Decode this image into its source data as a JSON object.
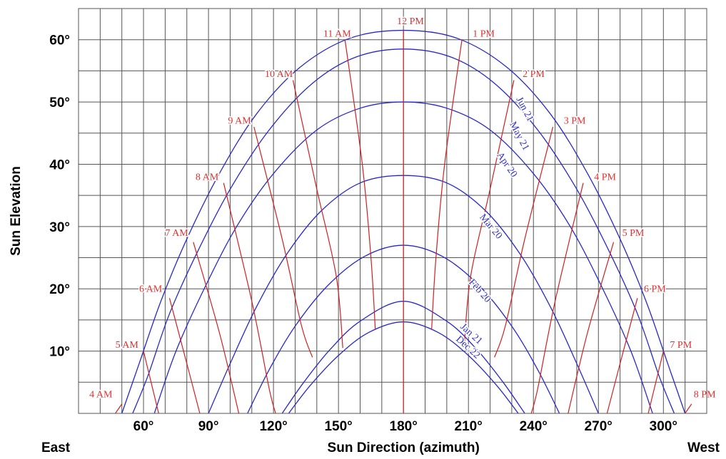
{
  "chart_data": {
    "type": "line",
    "xlabel": "Sun Direction (azimuth)",
    "ylabel": "Sun Elevation",
    "x_left_label": "East",
    "x_right_label": "West",
    "xlim": [
      30,
      320
    ],
    "ylim": [
      0,
      65
    ],
    "x_ticks": [
      {
        "value": 60,
        "label": "60°"
      },
      {
        "value": 90,
        "label": "90°"
      },
      {
        "value": 120,
        "label": "120°"
      },
      {
        "value": 150,
        "label": "150°"
      },
      {
        "value": 180,
        "label": "180°"
      },
      {
        "value": 210,
        "label": "210°"
      },
      {
        "value": 240,
        "label": "240°"
      },
      {
        "value": 270,
        "label": "270°"
      },
      {
        "value": 300,
        "label": "300°"
      }
    ],
    "y_ticks": [
      {
        "value": 10,
        "label": "10°"
      },
      {
        "value": 20,
        "label": "20°"
      },
      {
        "value": 30,
        "label": "30°"
      },
      {
        "value": 40,
        "label": "40°"
      },
      {
        "value": 50,
        "label": "50°"
      },
      {
        "value": 60,
        "label": "60°"
      }
    ],
    "grid": true,
    "series": [
      {
        "name": "Jun 21",
        "points": [
          [
            50,
            0
          ],
          [
            58,
            8
          ],
          [
            68,
            18
          ],
          [
            80,
            28
          ],
          [
            95,
            38.5
          ],
          [
            112,
            48
          ],
          [
            132,
            55.5
          ],
          [
            155,
            60.2
          ],
          [
            180,
            61.5
          ],
          [
            205,
            60.2
          ],
          [
            228,
            55.5
          ],
          [
            248,
            48
          ],
          [
            265,
            38.5
          ],
          [
            280,
            28
          ],
          [
            292,
            18
          ],
          [
            302,
            8
          ],
          [
            310,
            0
          ]
        ]
      },
      {
        "name": "May 21",
        "points": [
          [
            55,
            0
          ],
          [
            62,
            6
          ],
          [
            72,
            16
          ],
          [
            85,
            26
          ],
          [
            100,
            36
          ],
          [
            118,
            45.5
          ],
          [
            138,
            53
          ],
          [
            158,
            57.2
          ],
          [
            180,
            58.5
          ],
          [
            202,
            57.2
          ],
          [
            222,
            53
          ],
          [
            242,
            45.5
          ],
          [
            260,
            36
          ],
          [
            275,
            26
          ],
          [
            288,
            16
          ],
          [
            298,
            6
          ],
          [
            305,
            0
          ]
        ]
      },
      {
        "name": "Apr 20",
        "points": [
          [
            65,
            0
          ],
          [
            75,
            10
          ],
          [
            88,
            20
          ],
          [
            103,
            30
          ],
          [
            120,
            38.5
          ],
          [
            140,
            45.5
          ],
          [
            160,
            49
          ],
          [
            180,
            50
          ],
          [
            200,
            49
          ],
          [
            220,
            45.5
          ],
          [
            240,
            38.5
          ],
          [
            257,
            30
          ],
          [
            272,
            20
          ],
          [
            285,
            10
          ],
          [
            295,
            0
          ]
        ]
      },
      {
        "name": "Mar 20",
        "points": [
          [
            90,
            0
          ],
          [
            100,
            8
          ],
          [
            112,
            17
          ],
          [
            126,
            25.5
          ],
          [
            142,
            32.5
          ],
          [
            160,
            37
          ],
          [
            180,
            38.2
          ],
          [
            200,
            37
          ],
          [
            218,
            32.5
          ],
          [
            234,
            25.5
          ],
          [
            248,
            17
          ],
          [
            260,
            8
          ],
          [
            270,
            0
          ]
        ]
      },
      {
        "name": "Feb 20",
        "points": [
          [
            108,
            0
          ],
          [
            118,
            7
          ],
          [
            130,
            14
          ],
          [
            145,
            20.5
          ],
          [
            162,
            25.2
          ],
          [
            180,
            27
          ],
          [
            198,
            25.2
          ],
          [
            215,
            20.5
          ],
          [
            230,
            14
          ],
          [
            242,
            7
          ],
          [
            252,
            0
          ]
        ]
      },
      {
        "name": "Jan 21",
        "points": [
          [
            124,
            0
          ],
          [
            134,
            5
          ],
          [
            146,
            10.2
          ],
          [
            160,
            14.8
          ],
          [
            180,
            18
          ],
          [
            200,
            14.8
          ],
          [
            214,
            10.2
          ],
          [
            226,
            5
          ],
          [
            236,
            0
          ]
        ]
      },
      {
        "name": "Dec 22",
        "points": [
          [
            127,
            0
          ],
          [
            137,
            4.5
          ],
          [
            150,
            9.3
          ],
          [
            164,
            13
          ],
          [
            180,
            14.7
          ],
          [
            196,
            13
          ],
          [
            210,
            9.3
          ],
          [
            223,
            4.5
          ],
          [
            233,
            0
          ]
        ]
      }
    ],
    "hour_lines": [
      {
        "name": "4 AM",
        "points": [
          [
            47,
            0
          ],
          [
            50,
            1.5
          ]
        ]
      },
      {
        "name": "5 AM",
        "points": [
          [
            60,
            10
          ],
          [
            67,
            0
          ]
        ]
      },
      {
        "name": "6 AM",
        "points": [
          [
            72,
            18.5
          ],
          [
            80,
            8
          ],
          [
            86,
            0
          ]
        ]
      },
      {
        "name": "7 AM",
        "points": [
          [
            83,
            27.5
          ],
          [
            95,
            13
          ],
          [
            104,
            0
          ]
        ]
      },
      {
        "name": "8 AM",
        "points": [
          [
            97,
            37
          ],
          [
            110,
            18
          ],
          [
            118,
            4
          ],
          [
            121,
            0
          ]
        ]
      },
      {
        "name": "9 AM",
        "points": [
          [
            111,
            46
          ],
          [
            124,
            28
          ],
          [
            133,
            14
          ],
          [
            138,
            9
          ]
        ]
      },
      {
        "name": "10 AM",
        "points": [
          [
            129,
            53.5
          ],
          [
            140,
            36
          ],
          [
            149,
            22
          ],
          [
            152,
            10.5
          ]
        ]
      },
      {
        "name": "11 AM",
        "points": [
          [
            153,
            60
          ],
          [
            161,
            40
          ],
          [
            165,
            25
          ],
          [
            167,
            13.5
          ]
        ]
      },
      {
        "name": "12 PM",
        "points": [
          [
            180,
            61.5
          ],
          [
            180,
            0
          ]
        ]
      },
      {
        "name": "1 PM",
        "points": [
          [
            207,
            60
          ],
          [
            199,
            40
          ],
          [
            195,
            25
          ],
          [
            193,
            13.5
          ]
        ]
      },
      {
        "name": "2 PM",
        "points": [
          [
            231,
            53.5
          ],
          [
            220,
            36
          ],
          [
            211,
            22
          ],
          [
            208,
            10.5
          ]
        ]
      },
      {
        "name": "3 PM",
        "points": [
          [
            249,
            46
          ],
          [
            236,
            28
          ],
          [
            227,
            14
          ],
          [
            222,
            9
          ]
        ]
      },
      {
        "name": "4 PM",
        "points": [
          [
            263,
            37
          ],
          [
            250,
            18
          ],
          [
            242,
            4
          ],
          [
            239,
            0
          ]
        ]
      },
      {
        "name": "5 PM",
        "points": [
          [
            277,
            27.5
          ],
          [
            265,
            13
          ],
          [
            256,
            0
          ]
        ]
      },
      {
        "name": "6 PM",
        "points": [
          [
            288,
            18.5
          ],
          [
            280,
            8
          ],
          [
            274,
            0
          ]
        ]
      },
      {
        "name": "7 PM",
        "points": [
          [
            300,
            10
          ],
          [
            293,
            0
          ]
        ]
      },
      {
        "name": "8 PM",
        "points": [
          [
            313,
            1.5
          ],
          [
            310,
            0
          ]
        ]
      }
    ],
    "hour_label_positions": [
      {
        "name": "4 AM",
        "x": 35,
        "y": 2.6
      },
      {
        "name": "5 AM",
        "x": 47,
        "y": 10.5
      },
      {
        "name": "6 AM",
        "x": 58,
        "y": 19.5
      },
      {
        "name": "7 AM",
        "x": 70,
        "y": 28.5
      },
      {
        "name": "8 AM",
        "x": 84,
        "y": 37.5
      },
      {
        "name": "9 AM",
        "x": 99,
        "y": 46.5
      },
      {
        "name": "10 AM",
        "x": 116,
        "y": 54
      },
      {
        "name": "11 AM",
        "x": 143,
        "y": 60.5
      },
      {
        "name": "12 PM",
        "x": 177,
        "y": 62.5
      },
      {
        "name": "1 PM",
        "x": 212,
        "y": 60.5
      },
      {
        "name": "2 PM",
        "x": 235,
        "y": 54
      },
      {
        "name": "3 PM",
        "x": 254,
        "y": 46.5
      },
      {
        "name": "4 PM",
        "x": 268,
        "y": 37.5
      },
      {
        "name": "5 PM",
        "x": 281,
        "y": 28.5
      },
      {
        "name": "6 PM",
        "x": 291,
        "y": 19.5
      },
      {
        "name": "7 PM",
        "x": 303,
        "y": 10.5
      },
      {
        "name": "8 PM",
        "x": 314,
        "y": 2.6
      }
    ],
    "date_label_positions": [
      {
        "name": "Jun 21",
        "x": 232,
        "y": 50.5,
        "angle": 62
      },
      {
        "name": "May 21",
        "x": 229,
        "y": 46.5,
        "angle": 62
      },
      {
        "name": "Apr 20",
        "x": 223,
        "y": 41.5,
        "angle": 55
      },
      {
        "name": "Mar 20",
        "x": 215,
        "y": 31.5,
        "angle": 50
      },
      {
        "name": "Feb 20",
        "x": 210,
        "y": 21,
        "angle": 48
      },
      {
        "name": "Jan 21",
        "x": 206,
        "y": 13.8,
        "angle": 42
      },
      {
        "name": "Dec 22",
        "x": 204,
        "y": 11.8,
        "angle": 42
      }
    ],
    "colors": {
      "sun_path": "#2828c8",
      "hour_line": "#d02020",
      "grid": "#555555"
    }
  }
}
